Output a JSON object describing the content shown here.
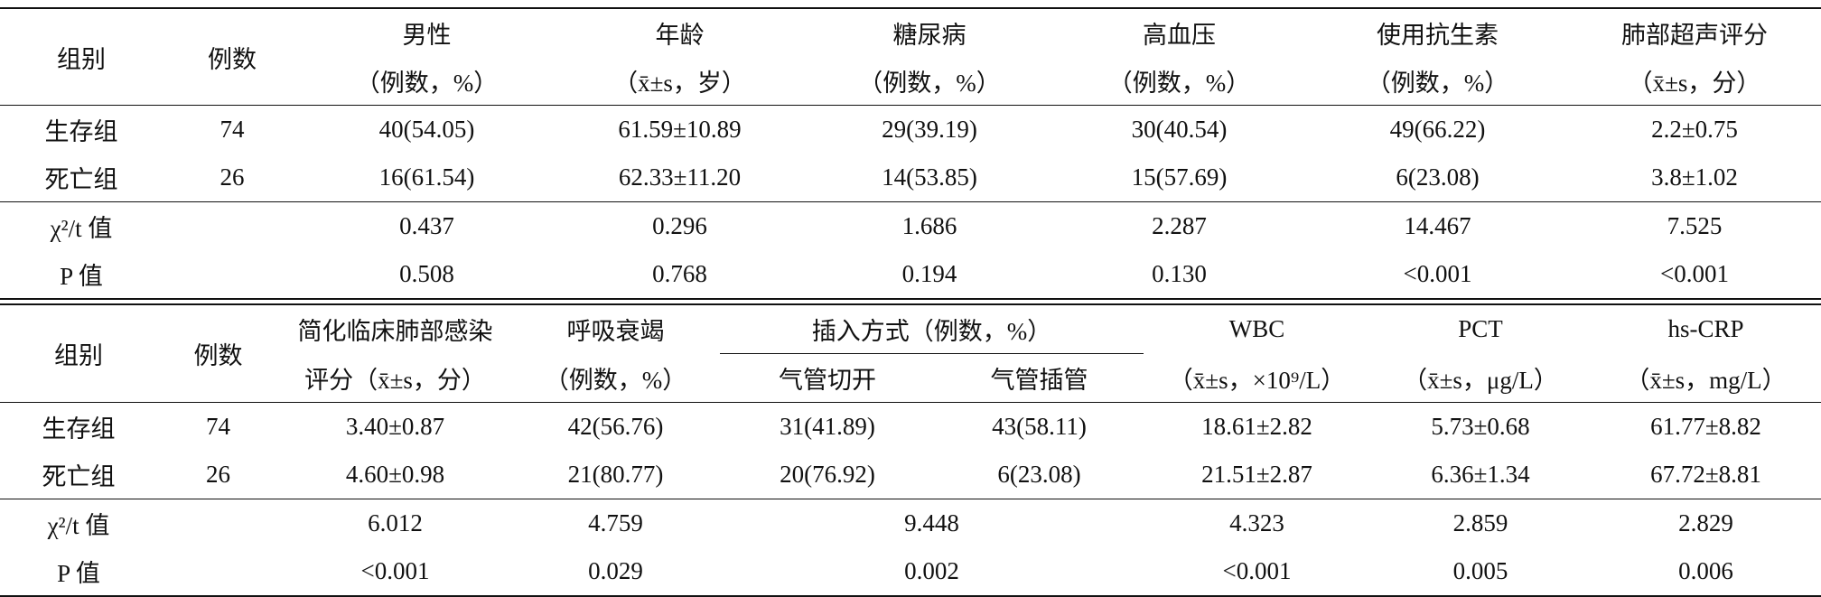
{
  "table1": {
    "header": [
      [
        "组别",
        "例数",
        "男性",
        "年龄",
        "糖尿病",
        "高血压",
        "使用抗生素",
        "肺部超声评分"
      ],
      [
        "（例数，%）",
        "（x̄±s，岁）",
        "（例数，%）",
        "（例数，%）",
        "（例数，%）",
        "（x̄±s，分）"
      ]
    ],
    "rows": [
      [
        "生存组",
        "74",
        "40(54.05)",
        "61.59±10.89",
        "29(39.19)",
        "30(40.54)",
        "49(66.22)",
        "2.2±0.75"
      ],
      [
        "死亡组",
        "26",
        "16(61.54)",
        "62.33±11.20",
        "14(53.85)",
        "15(57.69)",
        "6(23.08)",
        "3.8±1.02"
      ],
      [
        "χ²/t 值",
        "0.437",
        "0.296",
        "1.686",
        "2.287",
        "14.467",
        "7.525"
      ],
      [
        "P 值",
        "0.508",
        "0.768",
        "0.194",
        "0.130",
        "<0.001",
        "<0.001"
      ]
    ]
  },
  "table2": {
    "header": [
      [
        "组别",
        "例数",
        "简化临床肺部感染",
        "呼吸衰竭",
        "插入方式（例数，%）",
        "WBC",
        "PCT",
        "hs-CRP"
      ],
      [
        "评分（x̄±s，分）",
        "（例数，%）",
        "气管切开",
        "气管插管",
        "（x̄±s，×10⁹/L）",
        "（x̄±s，μg/L）",
        "（x̄±s，mg/L）"
      ]
    ],
    "rows": [
      [
        "生存组",
        "74",
        "3.40±0.87",
        "42(56.76)",
        "31(41.89)",
        "43(58.11)",
        "18.61±2.82",
        "5.73±0.68",
        "61.77±8.82"
      ],
      [
        "死亡组",
        "26",
        "4.60±0.98",
        "21(80.77)",
        "20(76.92)",
        "6(23.08)",
        "21.51±2.87",
        "6.36±1.34",
        "67.72±8.81"
      ],
      [
        "χ²/t 值",
        "6.012",
        "4.759",
        "9.448",
        "4.323",
        "2.859",
        "2.829"
      ],
      [
        "P 值",
        "<0.001",
        "0.029",
        "0.002",
        "<0.001",
        "0.005",
        "0.006"
      ]
    ]
  }
}
